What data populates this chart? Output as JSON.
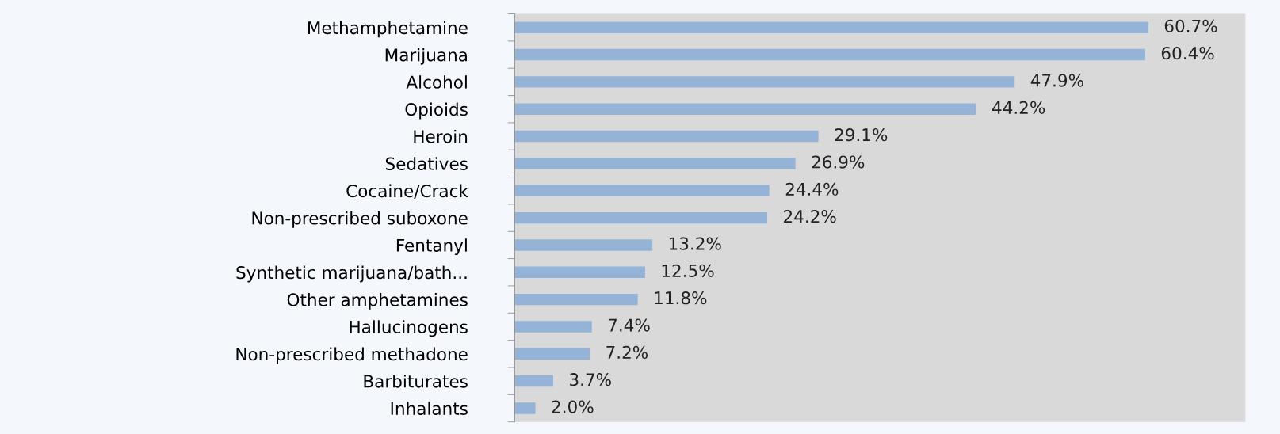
{
  "chart_data": {
    "type": "bar",
    "orientation": "horizontal",
    "categories": [
      "Methamphetamine",
      "Marijuana",
      "Alcohol",
      "Opioids",
      "Heroin",
      "Sedatives",
      "Cocaine/Crack",
      "Non-prescribed suboxone",
      "Fentanyl",
      "Synthetic marijuana/bath...",
      "Other amphetamines",
      "Hallucinogens",
      "Non-prescribed methadone",
      "Barbiturates",
      "Inhalants"
    ],
    "values": [
      60.7,
      60.4,
      47.9,
      44.2,
      29.1,
      26.9,
      24.4,
      24.2,
      13.2,
      12.5,
      11.8,
      7.4,
      7.2,
      3.7,
      2.0
    ],
    "value_labels": [
      "60.7%",
      "60.4%",
      "47.9%",
      "44.2%",
      "29.1%",
      "26.9%",
      "24.4%",
      "24.2%",
      "13.2%",
      "12.5%",
      "11.8%",
      "7.4%",
      "7.2%",
      "3.7%",
      "2.0%"
    ],
    "color": "#95b3d7",
    "xlim": [
      0,
      70
    ],
    "tick_labels": "y",
    "grid": false,
    "legend": false
  }
}
